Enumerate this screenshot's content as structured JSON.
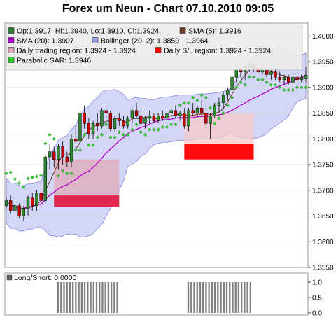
{
  "chart_data": [
    {
      "type": "candlestick",
      "title": "Forex um Neun - Chart 07.10.2010 09:05",
      "ylim": [
        1.355,
        1.4025
      ],
      "yticks": [
        "1.4000",
        "1.3950",
        "1.3900",
        "1.3850",
        "1.3800",
        "1.3750",
        "1.3700",
        "1.3650",
        "1.3600",
        "1.3550"
      ],
      "legend": [
        {
          "label": "Op:1.3917, Hi:1.3940, Lo:1.3910, Cl:1.3924",
          "color": "#2e7d32",
          "kind": "swatch"
        },
        {
          "label": "SMA (5): 1.3916",
          "color": "#6b3a2a",
          "kind": "swatch"
        },
        {
          "label": "SMA (20): 1.3907",
          "color": "#b000c8",
          "kind": "swatch"
        },
        {
          "label": "Bollinger (20, 2): 1.3850 - 1.3964",
          "color": "#9fa4ee",
          "kind": "swatch"
        },
        {
          "label": "Daily trading region: 1.3924 - 1.3924",
          "color": "#e0a8b8",
          "kind": "swatch"
        },
        {
          "label": "Daily S/L region: 1.3924 - 1.3924",
          "color": "#ff0000",
          "kind": "swatch"
        },
        {
          "label": "Parabolic SAR: 1.3946",
          "color": "#33cc33",
          "kind": "swatch"
        }
      ],
      "candles": [
        [
          1.367,
          1.3685,
          1.3665,
          1.368
        ],
        [
          1.368,
          1.369,
          1.3655,
          1.366
        ],
        [
          1.366,
          1.368,
          1.364,
          1.367
        ],
        [
          1.367,
          1.3675,
          1.3645,
          1.365
        ],
        [
          1.365,
          1.367,
          1.364,
          1.3665
        ],
        [
          1.3665,
          1.369,
          1.365,
          1.3685
        ],
        [
          1.3685,
          1.3695,
          1.366,
          1.367
        ],
        [
          1.367,
          1.37,
          1.366,
          1.3695
        ],
        [
          1.3695,
          1.3705,
          1.3675,
          1.368
        ],
        [
          1.368,
          1.377,
          1.3675,
          1.3765
        ],
        [
          1.3765,
          1.379,
          1.374,
          1.3775
        ],
        [
          1.3775,
          1.3785,
          1.3745,
          1.376
        ],
        [
          1.376,
          1.379,
          1.374,
          1.3785
        ],
        [
          1.3785,
          1.3795,
          1.375,
          1.3765
        ],
        [
          1.3765,
          1.3775,
          1.3745,
          1.3755
        ],
        [
          1.3755,
          1.381,
          1.3745,
          1.38
        ],
        [
          1.38,
          1.3825,
          1.379,
          1.3795
        ],
        [
          1.3795,
          1.3855,
          1.379,
          1.385
        ],
        [
          1.385,
          1.3865,
          1.382,
          1.383
        ],
        [
          1.383,
          1.384,
          1.38,
          1.381
        ],
        [
          1.381,
          1.3835,
          1.38,
          1.383
        ],
        [
          1.383,
          1.385,
          1.3815,
          1.3825
        ],
        [
          1.3825,
          1.386,
          1.382,
          1.3855
        ],
        [
          1.3855,
          1.3865,
          1.384,
          1.385
        ],
        [
          1.385,
          1.3855,
          1.3815,
          1.382
        ],
        [
          1.382,
          1.3845,
          1.3815,
          1.384
        ],
        [
          1.384,
          1.385,
          1.3825,
          1.3835
        ],
        [
          1.3835,
          1.3845,
          1.382,
          1.3825
        ],
        [
          1.3825,
          1.3845,
          1.382,
          1.384
        ],
        [
          1.384,
          1.386,
          1.383,
          1.3855
        ],
        [
          1.3855,
          1.387,
          1.384,
          1.3845
        ],
        [
          1.3845,
          1.386,
          1.3825,
          1.383
        ],
        [
          1.383,
          1.3845,
          1.382,
          1.384
        ],
        [
          1.384,
          1.3855,
          1.383,
          1.3845
        ],
        [
          1.3845,
          1.385,
          1.383,
          1.3835
        ],
        [
          1.3835,
          1.385,
          1.383,
          1.3845
        ],
        [
          1.3845,
          1.3855,
          1.3835,
          1.384
        ],
        [
          1.384,
          1.3855,
          1.3835,
          1.385
        ],
        [
          1.385,
          1.386,
          1.384,
          1.3855
        ],
        [
          1.3855,
          1.3865,
          1.384,
          1.3845
        ],
        [
          1.3845,
          1.3855,
          1.3835,
          1.385
        ],
        [
          1.385,
          1.386,
          1.382,
          1.3825
        ],
        [
          1.3825,
          1.386,
          1.3815,
          1.3855
        ],
        [
          1.3855,
          1.387,
          1.3845,
          1.385
        ],
        [
          1.385,
          1.3865,
          1.384,
          1.386
        ],
        [
          1.386,
          1.3875,
          1.3845,
          1.385
        ],
        [
          1.385,
          1.387,
          1.382,
          1.383
        ],
        [
          1.383,
          1.385,
          1.38,
          1.3845
        ],
        [
          1.3845,
          1.387,
          1.384,
          1.3865
        ],
        [
          1.3865,
          1.388,
          1.385,
          1.387
        ],
        [
          1.387,
          1.389,
          1.386,
          1.3885
        ],
        [
          1.3885,
          1.39,
          1.3875,
          1.3895
        ],
        [
          1.3895,
          1.3925,
          1.389,
          1.392
        ],
        [
          1.392,
          1.3945,
          1.391,
          1.3935
        ],
        [
          1.3935,
          1.395,
          1.392,
          1.393
        ],
        [
          1.393,
          1.3945,
          1.3915,
          1.394
        ],
        [
          1.394,
          1.395,
          1.393,
          1.3945
        ],
        [
          1.3945,
          1.3948,
          1.393,
          1.3935
        ],
        [
          1.3935,
          1.3942,
          1.3925,
          1.393
        ],
        [
          1.393,
          1.394,
          1.3925,
          1.3935
        ],
        [
          1.3935,
          1.394,
          1.392,
          1.3925
        ],
        [
          1.3925,
          1.3935,
          1.3915,
          1.393
        ],
        [
          1.393,
          1.3935,
          1.3915,
          1.392
        ],
        [
          1.392,
          1.393,
          1.391,
          1.3915
        ],
        [
          1.3915,
          1.3925,
          1.3905,
          1.392
        ],
        [
          1.392,
          1.3925,
          1.3905,
          1.391
        ],
        [
          1.391,
          1.3925,
          1.3905,
          1.392
        ],
        [
          1.392,
          1.393,
          1.391,
          1.3915
        ],
        [
          1.3915,
          1.3925,
          1.391,
          1.392
        ],
        [
          1.3917,
          1.394,
          1.391,
          1.3924
        ]
      ],
      "regions": [
        {
          "from_index": 16,
          "to_index": 38,
          "low": 1.3675,
          "high": 1.376,
          "color": "#e0a8b8"
        },
        {
          "from_index": 16,
          "to_index": 38,
          "low": 1.3668,
          "high": 1.369,
          "color": "#e0204a"
        },
        {
          "from_index": 60,
          "to_index": 83,
          "low": 1.379,
          "high": 1.385,
          "color": "#f7c8c8"
        },
        {
          "from_index": 60,
          "to_index": 83,
          "low": 1.376,
          "high": 1.379,
          "color": "#ff0000"
        }
      ]
    },
    {
      "type": "bar",
      "title": "Long/Short: 0.0000",
      "ylim": [
        0,
        1.0
      ],
      "yticks": [
        "1.0",
        "0.5",
        "0.0"
      ],
      "values": [
        0,
        0,
        0,
        0,
        0,
        0,
        0,
        0,
        0,
        0,
        0,
        0,
        0,
        0,
        0,
        0,
        0,
        1,
        1,
        1,
        1,
        1,
        1,
        1,
        1,
        1,
        1,
        1,
        1,
        1,
        1,
        1,
        1,
        1,
        1,
        1,
        1,
        1,
        0,
        0,
        0,
        0,
        0,
        0,
        0,
        0,
        0,
        0,
        0,
        0,
        0,
        0,
        0,
        0,
        0,
        0,
        0,
        0,
        0,
        0,
        0,
        1,
        1,
        1,
        1,
        1,
        1,
        1,
        1,
        1,
        1,
        1,
        1,
        1,
        1,
        1,
        1,
        1,
        1,
        1,
        1,
        1,
        1,
        0,
        0,
        0,
        0,
        0,
        0,
        0,
        0,
        0,
        0,
        0,
        0,
        0,
        0,
        0,
        0,
        0,
        0
      ],
      "color": "#808080"
    }
  ]
}
